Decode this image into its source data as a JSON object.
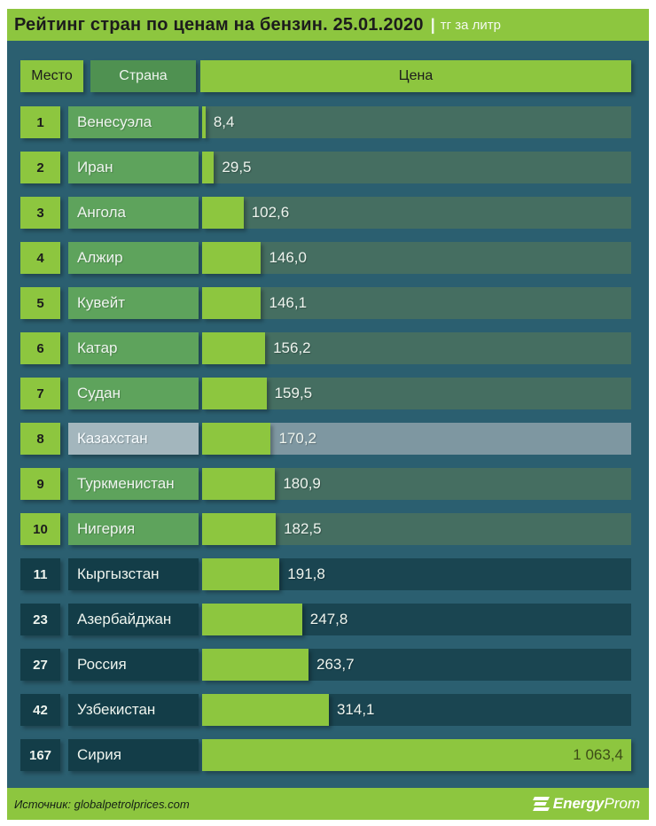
{
  "title": {
    "main": "Рейтинг стран по ценам на бензин. 25.01.2020",
    "separator": "|",
    "unit": "тг за литр"
  },
  "table_headers": {
    "rank": "Место",
    "country": "Страна",
    "price": "Цена"
  },
  "rows": [
    {
      "rank": "1",
      "country": "Венесуэла",
      "value": 8.4,
      "value_label": "8,4",
      "tier": "top10",
      "value_inside": false
    },
    {
      "rank": "2",
      "country": "Иран",
      "value": 29.5,
      "value_label": "29,5",
      "tier": "top10",
      "value_inside": false
    },
    {
      "rank": "3",
      "country": "Ангола",
      "value": 102.6,
      "value_label": "102,6",
      "tier": "top10",
      "value_inside": false
    },
    {
      "rank": "4",
      "country": "Алжир",
      "value": 146.0,
      "value_label": "146,0",
      "tier": "top10",
      "value_inside": false
    },
    {
      "rank": "5",
      "country": "Кувейт",
      "value": 146.1,
      "value_label": "146,1",
      "tier": "top10",
      "value_inside": false
    },
    {
      "rank": "6",
      "country": "Катар",
      "value": 156.2,
      "value_label": "156,2",
      "tier": "top10",
      "value_inside": false
    },
    {
      "rank": "7",
      "country": "Судан",
      "value": 159.5,
      "value_label": "159,5",
      "tier": "top10",
      "value_inside": false
    },
    {
      "rank": "8",
      "country": "Казахстан",
      "value": 170.2,
      "value_label": "170,2",
      "tier": "highlight",
      "value_inside": false
    },
    {
      "rank": "9",
      "country": "Туркменистан",
      "value": 180.9,
      "value_label": "180,9",
      "tier": "top10",
      "value_inside": false
    },
    {
      "rank": "10",
      "country": "Нигерия",
      "value": 182.5,
      "value_label": "182,5",
      "tier": "top10",
      "value_inside": false
    },
    {
      "rank": "11",
      "country": "Кыргызстан",
      "value": 191.8,
      "value_label": "191,8",
      "tier": "rest",
      "value_inside": false
    },
    {
      "rank": "23",
      "country": "Азербайджан",
      "value": 247.8,
      "value_label": "247,8",
      "tier": "rest",
      "value_inside": false
    },
    {
      "rank": "27",
      "country": "Россия",
      "value": 263.7,
      "value_label": "263,7",
      "tier": "rest",
      "value_inside": false
    },
    {
      "rank": "42",
      "country": "Узбекистан",
      "value": 314.1,
      "value_label": "314,1",
      "tier": "rest",
      "value_inside": false
    },
    {
      "rank": "167",
      "country": "Сирия",
      "value": 1063.4,
      "value_label": "1 063,4",
      "tier": "rest",
      "value_inside": true
    }
  ],
  "footer": {
    "source": "Источник: globalpetrolprices.com",
    "logo_bold": "Energy",
    "logo_light": "Prom"
  },
  "colors": {
    "accent_green": "#8dc63f",
    "muted_green": "#5ea35c",
    "background_teal": "#2b5f70",
    "dark_box": "#133d48",
    "highlight_gray": "#a3b6bd",
    "title_bar": "#8dc63f"
  },
  "chart_data": {
    "type": "bar",
    "orientation": "horizontal",
    "title": "Рейтинг стран по ценам на бензин. 25.01.2020",
    "unit": "тг за литр",
    "categories": [
      "Венесуэла",
      "Иран",
      "Ангола",
      "Алжир",
      "Кувейт",
      "Катар",
      "Судан",
      "Казахстан",
      "Туркменистан",
      "Нигерия",
      "Кыргызстан",
      "Азербайджан",
      "Россия",
      "Узбекистан",
      "Сирия"
    ],
    "ranks": [
      1,
      2,
      3,
      4,
      5,
      6,
      7,
      8,
      9,
      10,
      11,
      23,
      27,
      42,
      167
    ],
    "values": [
      8.4,
      29.5,
      102.6,
      146.0,
      146.1,
      156.2,
      159.5,
      170.2,
      180.9,
      182.5,
      191.8,
      247.8,
      263.7,
      314.1,
      1063.4
    ],
    "highlighted_category": "Казахстан",
    "xlim": [
      0,
      1063.4
    ],
    "grid": false,
    "legend": false,
    "source": "globalpetrolprices.com"
  }
}
